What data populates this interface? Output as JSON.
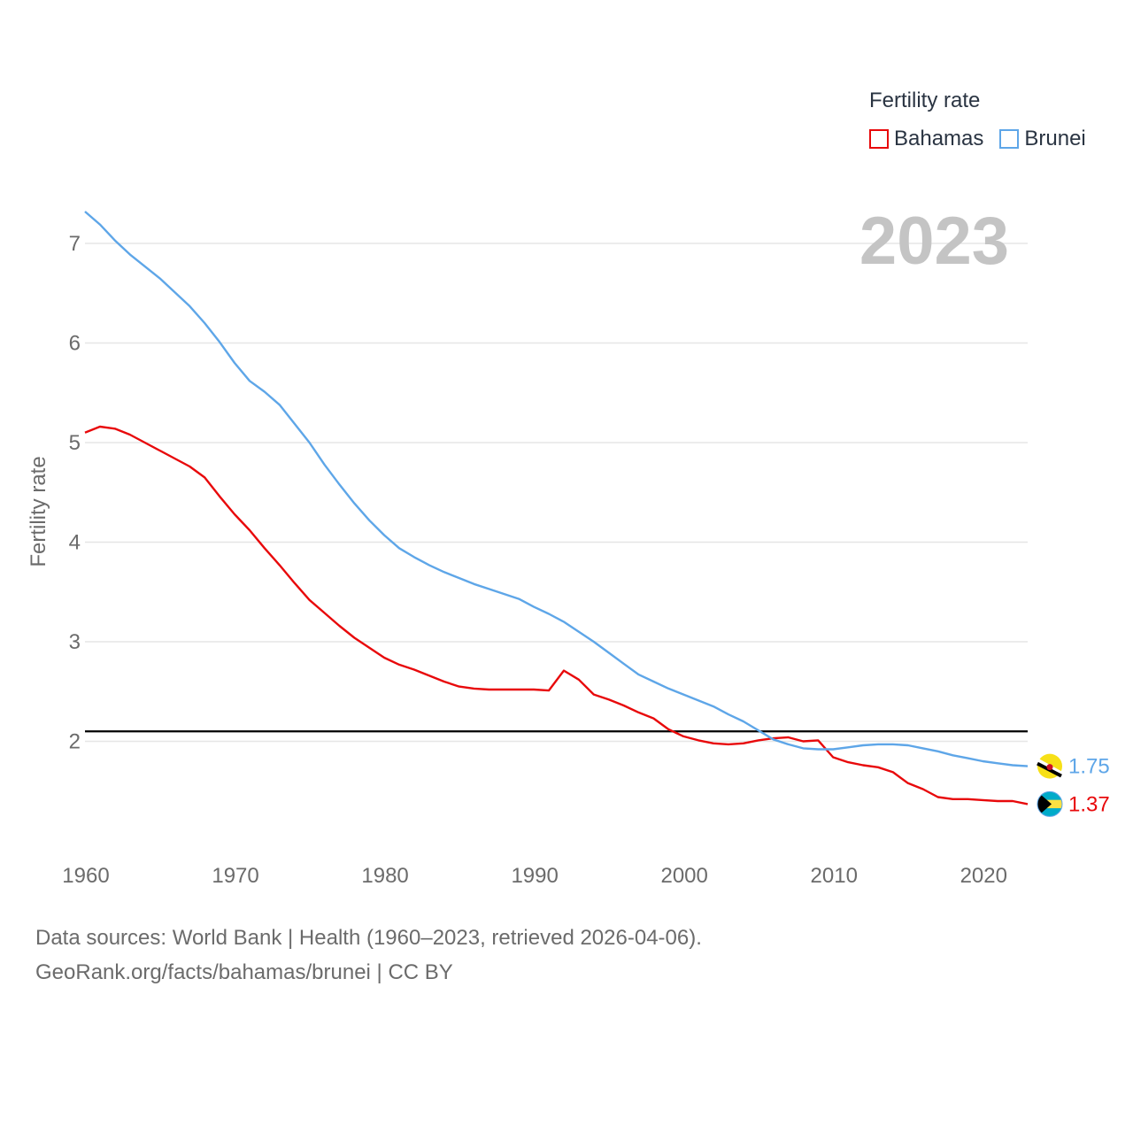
{
  "legend": {
    "title": "Fertility rate",
    "items": [
      {
        "label": "Bahamas",
        "color": "#e8090b"
      },
      {
        "label": "Brunei",
        "color": "#5ea6e8"
      }
    ]
  },
  "footer": {
    "line1": "Data sources: World Bank | Health (1960–2023, retrieved 2026-04-06).",
    "line2": "GeoRank.org/facts/bahamas/brunei | CC BY"
  },
  "chart_data": {
    "type": "line",
    "title": "2023",
    "xlabel": "",
    "ylabel": "Fertility rate",
    "xlim": [
      1960,
      2023
    ],
    "ylim": [
      1.0,
      7.4
    ],
    "x_ticks": [
      1960,
      1970,
      1980,
      1990,
      2000,
      2010,
      2020
    ],
    "y_ticks": [
      2,
      3,
      4,
      5,
      6,
      7
    ],
    "reference_line": {
      "y": 2.1,
      "color": "#000000"
    },
    "x": [
      1960,
      1961,
      1962,
      1963,
      1964,
      1965,
      1966,
      1967,
      1968,
      1969,
      1970,
      1971,
      1972,
      1973,
      1974,
      1975,
      1976,
      1977,
      1978,
      1979,
      1980,
      1981,
      1982,
      1983,
      1984,
      1985,
      1986,
      1987,
      1988,
      1989,
      1990,
      1991,
      1992,
      1993,
      1994,
      1995,
      1996,
      1997,
      1998,
      1999,
      2000,
      2001,
      2002,
      2003,
      2004,
      2005,
      2006,
      2007,
      2008,
      2009,
      2010,
      2011,
      2012,
      2013,
      2014,
      2015,
      2016,
      2017,
      2018,
      2019,
      2020,
      2021,
      2022,
      2023
    ],
    "series": [
      {
        "name": "Bahamas",
        "color": "#e8090b",
        "end_label": "1.37",
        "values": [
          5.1,
          5.16,
          5.14,
          5.08,
          5.0,
          4.92,
          4.84,
          4.76,
          4.65,
          4.46,
          4.28,
          4.12,
          3.94,
          3.77,
          3.59,
          3.42,
          3.29,
          3.16,
          3.04,
          2.94,
          2.84,
          2.77,
          2.72,
          2.66,
          2.6,
          2.55,
          2.53,
          2.52,
          2.52,
          2.52,
          2.52,
          2.51,
          2.71,
          2.62,
          2.47,
          2.42,
          2.36,
          2.29,
          2.23,
          2.12,
          2.05,
          2.01,
          1.98,
          1.97,
          1.98,
          2.01,
          2.03,
          2.04,
          2.0,
          2.01,
          1.84,
          1.79,
          1.76,
          1.74,
          1.69,
          1.58,
          1.52,
          1.44,
          1.42,
          1.42,
          1.41,
          1.4,
          1.4,
          1.37
        ]
      },
      {
        "name": "Brunei",
        "color": "#5ea6e8",
        "end_label": "1.75",
        "values": [
          7.32,
          7.19,
          7.03,
          6.89,
          6.77,
          6.65,
          6.51,
          6.37,
          6.2,
          6.01,
          5.8,
          5.62,
          5.51,
          5.38,
          5.19,
          5.0,
          4.78,
          4.58,
          4.39,
          4.22,
          4.07,
          3.94,
          3.85,
          3.77,
          3.7,
          3.64,
          3.58,
          3.53,
          3.48,
          3.43,
          3.35,
          3.28,
          3.2,
          3.1,
          3.0,
          2.89,
          2.78,
          2.67,
          2.6,
          2.53,
          2.47,
          2.41,
          2.35,
          2.27,
          2.2,
          2.11,
          2.02,
          1.97,
          1.93,
          1.92,
          1.92,
          1.94,
          1.96,
          1.97,
          1.97,
          1.96,
          1.93,
          1.9,
          1.86,
          1.83,
          1.8,
          1.78,
          1.76,
          1.75
        ]
      }
    ]
  }
}
